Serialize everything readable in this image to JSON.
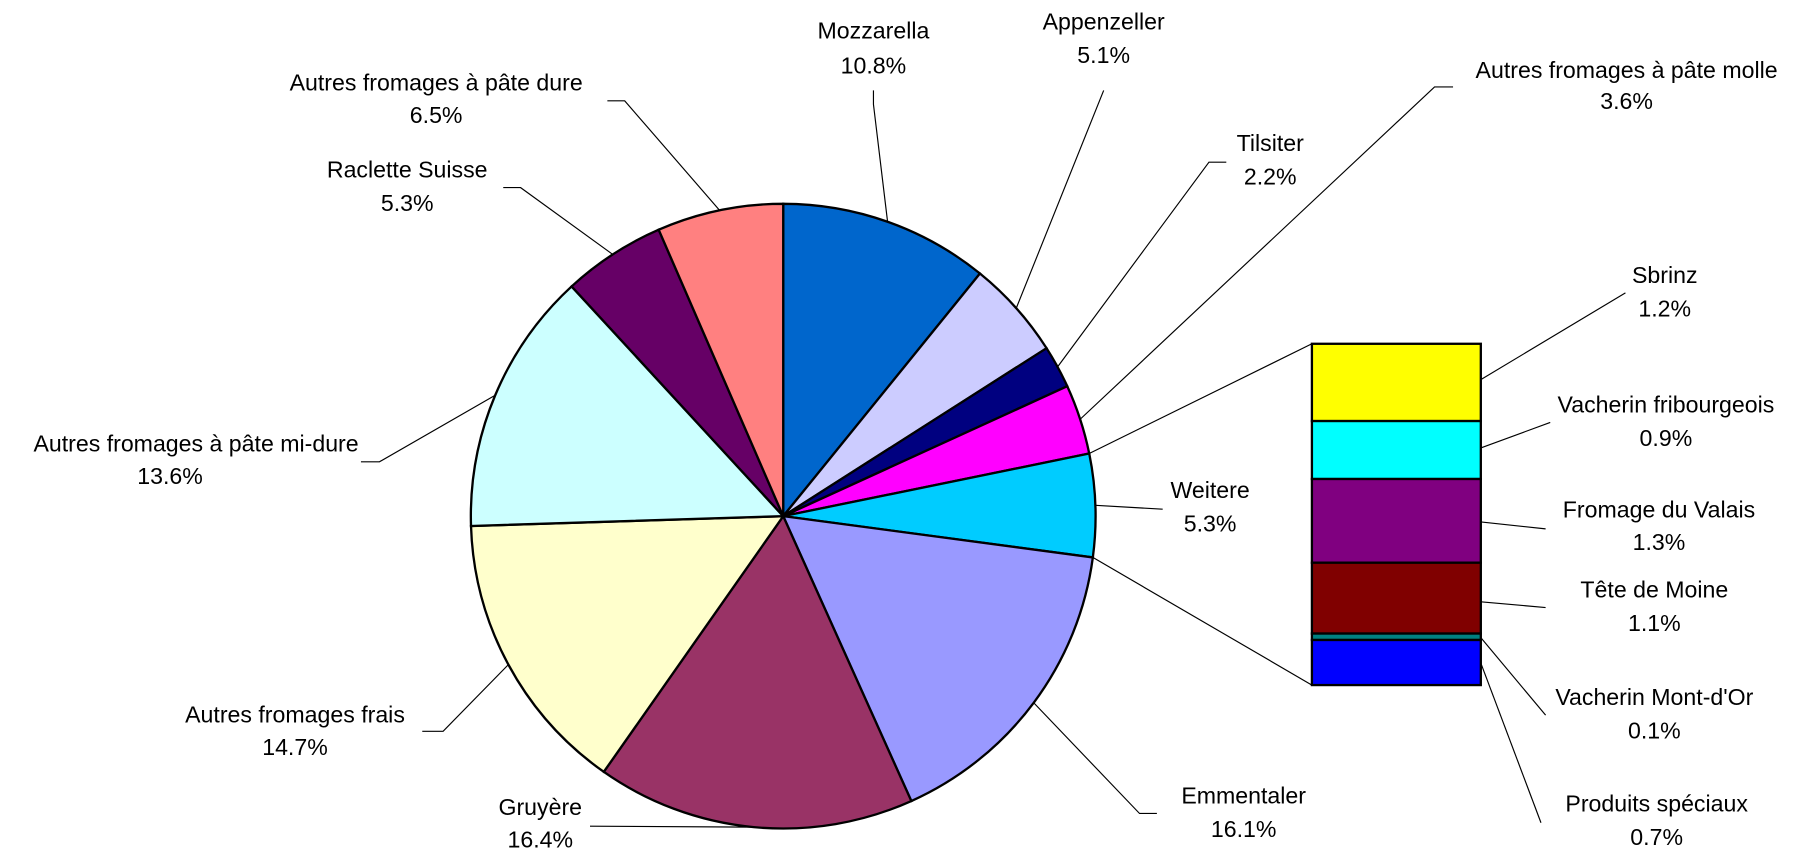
{
  "chart_data": [
    {
      "type": "pie",
      "categories": [
        "Mozzarella",
        "Appenzeller",
        "Tilsiter",
        "Autres fromages à pâte molle",
        "Weitere",
        "Emmentaler",
        "Gruyère",
        "Autres fromages frais",
        "Autres fromages à pâte mi-dure",
        "Raclette Suisse",
        "Autres fromages à pâte dure"
      ],
      "values": [
        10.8,
        5.1,
        2.2,
        3.6,
        5.3,
        16.1,
        16.4,
        14.7,
        13.6,
        5.3,
        6.5
      ],
      "value_labels": [
        "10.8%",
        "5.1%",
        "2.2%",
        "3.6%",
        "5.3%",
        "16.1%",
        "16.4%",
        "14.7%",
        "13.6%",
        "5.3%",
        "6.5%"
      ],
      "colors": [
        "#0066cc",
        "#ccccff",
        "#000080",
        "#ff00ff",
        "#00ccff",
        "#9999ff",
        "#993366",
        "#ffffcc",
        "#ccffff",
        "#660066",
        "#ff8080"
      ]
    },
    {
      "type": "stacked_bar",
      "categories": [
        "Sbrinz",
        "Vacherin fribourgeois",
        "Fromage du Valais",
        "Tête de Moine",
        "Vacherin Mont-d'Or",
        "Produits spéciaux"
      ],
      "values": [
        1.2,
        0.9,
        1.3,
        1.1,
        0.1,
        0.7
      ],
      "value_labels": [
        "1.2%",
        "0.9%",
        "1.3%",
        "1.1%",
        "0.1%",
        "0.7%"
      ],
      "colors": [
        "#ffff00",
        "#00ffff",
        "#800080",
        "#800000",
        "#008080",
        "#0000ff"
      ]
    }
  ]
}
